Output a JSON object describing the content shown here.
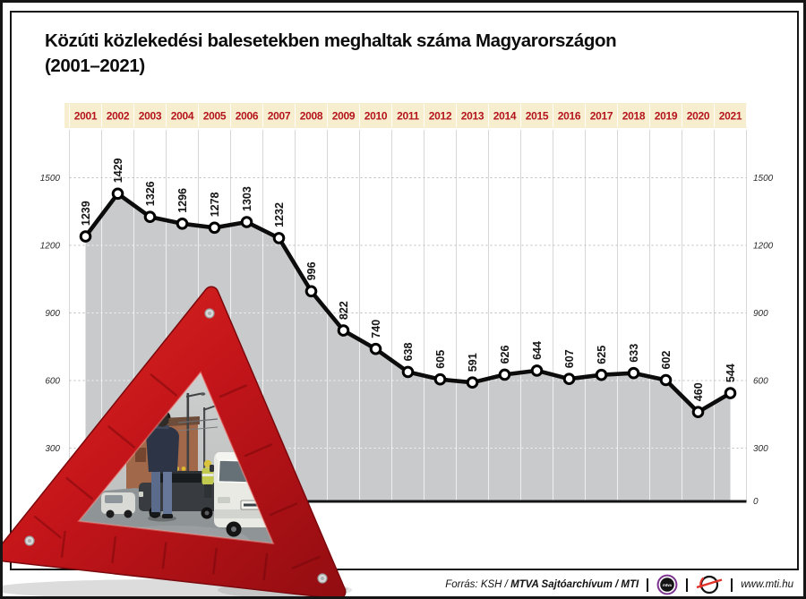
{
  "title": {
    "line1": "Közúti közlekedési balesetekben meghaltak száma Magyarországon",
    "line2": "(2001–2021)"
  },
  "chart_data": {
    "type": "area",
    "title": "Közúti közlekedési balesetekben meghaltak száma Magyarországon (2001–2021)",
    "categories": [
      "2001",
      "2002",
      "2003",
      "2004",
      "2005",
      "2006",
      "2007",
      "2008",
      "2009",
      "2010",
      "2011",
      "2012",
      "2013",
      "2014",
      "2015",
      "2016",
      "2017",
      "2018",
      "2019",
      "2020",
      "2021"
    ],
    "values": [
      1239,
      1429,
      1326,
      1296,
      1278,
      1303,
      1232,
      996,
      822,
      740,
      638,
      605,
      591,
      626,
      644,
      607,
      625,
      633,
      602,
      460,
      544
    ],
    "yticks": [
      0,
      300,
      600,
      900,
      1200,
      1500
    ],
    "ylim": [
      0,
      1650
    ],
    "grid": true,
    "legend_position": "none",
    "styles": {
      "line_color": "#0c0c0c",
      "area_color": "#c9cacc",
      "marker_fill": "#ffffff",
      "marker_stroke": "#000000",
      "grid_color": "#d7d7d7",
      "dotted_color": "#bdbdbd",
      "tick_color": "#2a2a2a",
      "label_color": "#141414",
      "year_color": "#b5151c",
      "band_bg": "#f7eecf"
    }
  },
  "footer": {
    "source_italic": "Forrás: KSH /",
    "source_bold": "MTVA Sajtóarchívum / MTI",
    "separator": "|",
    "website": "www.mti.hu",
    "mtva_text": "mtva"
  },
  "illustration": {
    "icon": "warning-triangle-photo-icon"
  }
}
